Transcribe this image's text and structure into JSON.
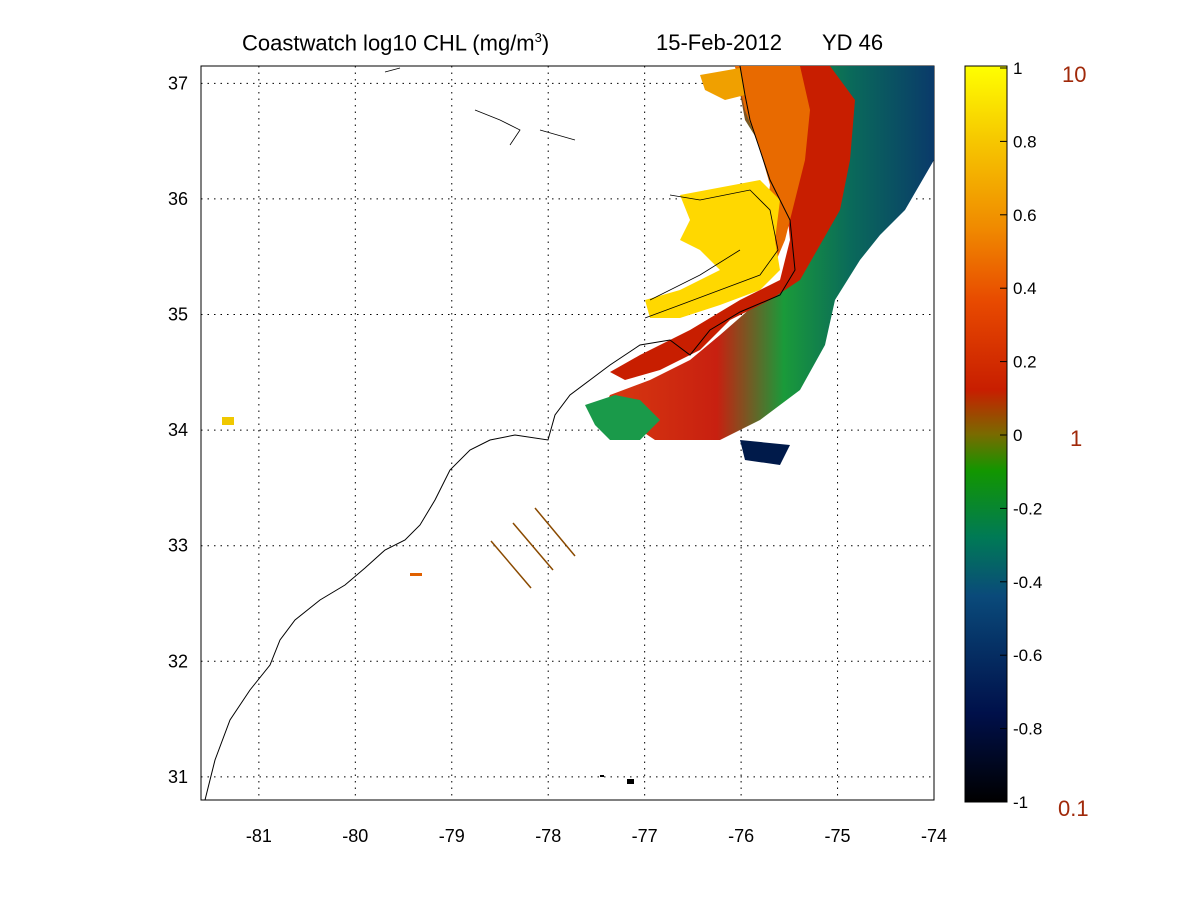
{
  "title": {
    "main": "Coastwatch  log10  CHL (mg/m",
    "superscript": "3",
    "close": ")",
    "date": "15-Feb-2012",
    "yearday": "YD 46"
  },
  "map": {
    "lon_range": [
      -81.6,
      -74.0
    ],
    "lat_range": [
      30.8,
      37.15
    ],
    "lon_ticks": [
      "-81",
      "-80",
      "-79",
      "-78",
      "-77",
      "-76",
      "-75",
      "-74"
    ],
    "lat_ticks": [
      "31",
      "32",
      "33",
      "34",
      "35",
      "36",
      "37"
    ],
    "grid": "dotted"
  },
  "colorbar": {
    "range": [
      -1,
      1
    ],
    "ticks": [
      "1",
      "0.8",
      "0.6",
      "0.4",
      "0.2",
      "0",
      "-0.2",
      "-0.4",
      "-0.6",
      "-0.8",
      "-1"
    ],
    "linear_labels": [
      "10",
      "1",
      "0.1"
    ],
    "colors": [
      "#000000",
      "#00104a",
      "#007a55",
      "#129600",
      "#7a6a00",
      "#c81e00",
      "#f06000",
      "#f6b800",
      "#ffff00"
    ]
  }
}
